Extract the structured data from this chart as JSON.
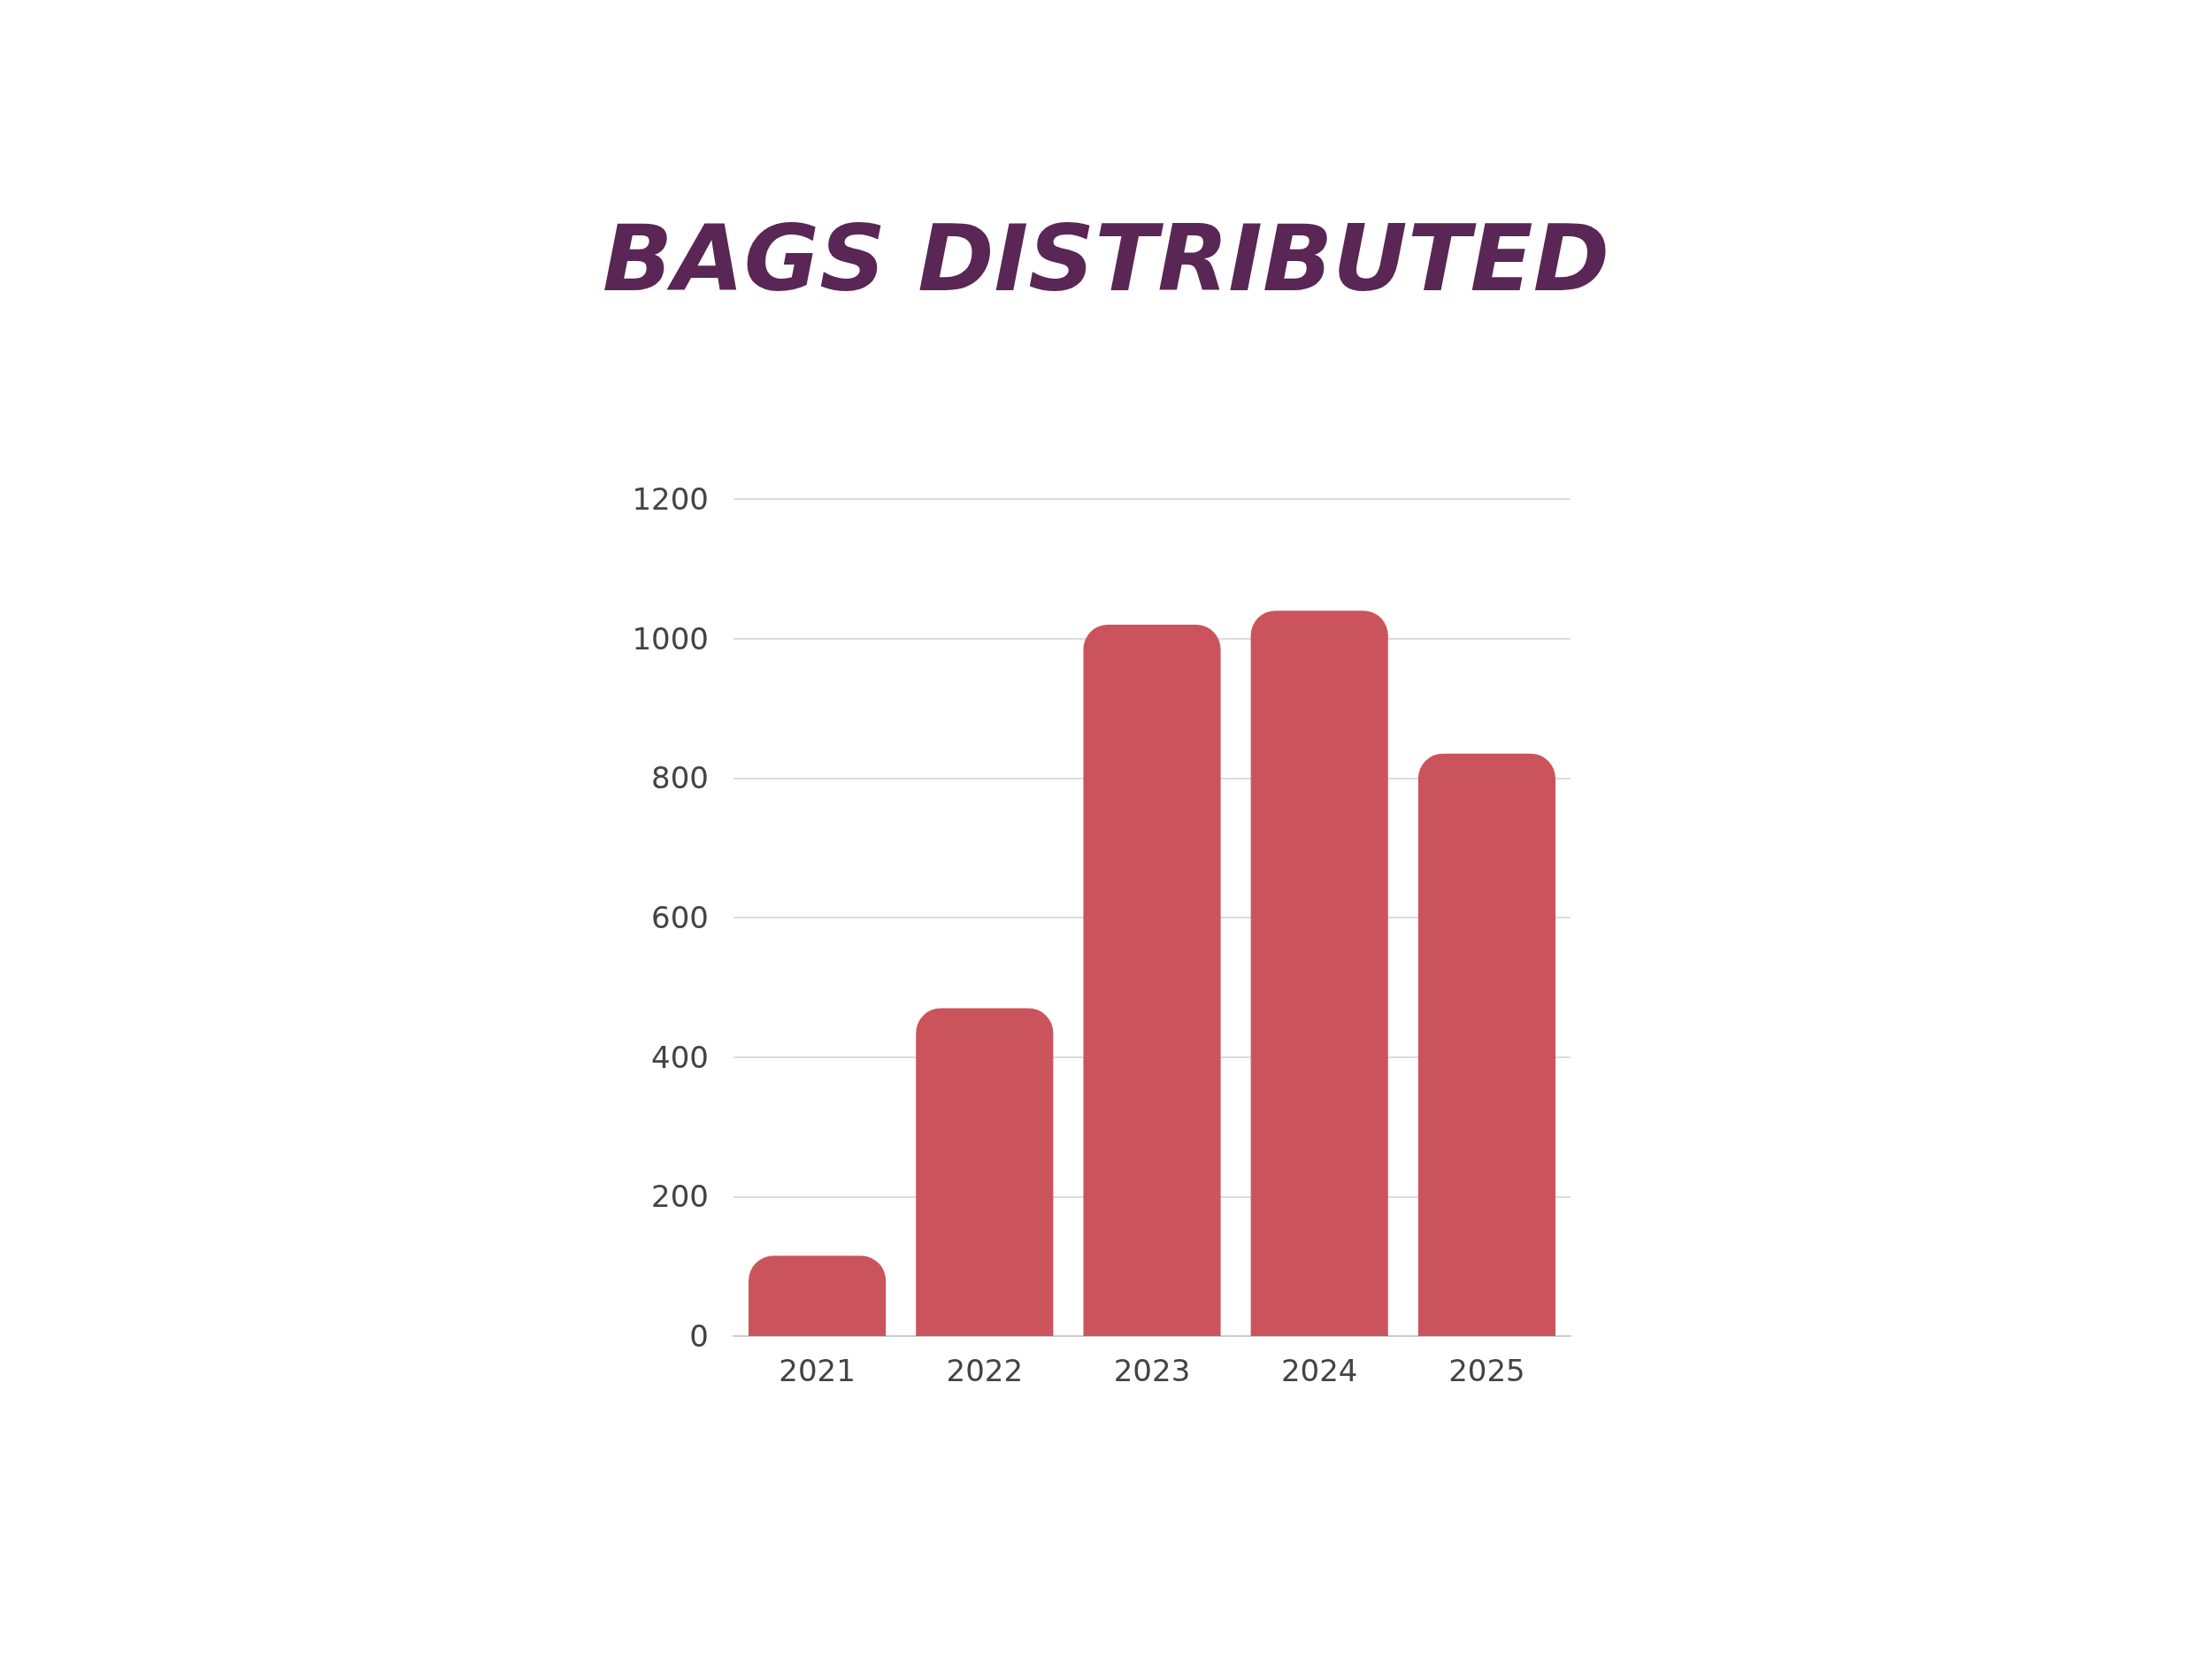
{
  "chart_data": {
    "type": "bar",
    "title": "BAGS DISTRIBUTED",
    "categories": [
      "2021",
      "2022",
      "2023",
      "2024",
      "2025"
    ],
    "values": [
      115,
      470,
      1020,
      1040,
      835
    ],
    "color": "#cb545c",
    "ylim": [
      0,
      1200
    ],
    "yticks": [
      0,
      200,
      400,
      600,
      800,
      1000,
      1200
    ],
    "grid": "y"
  }
}
